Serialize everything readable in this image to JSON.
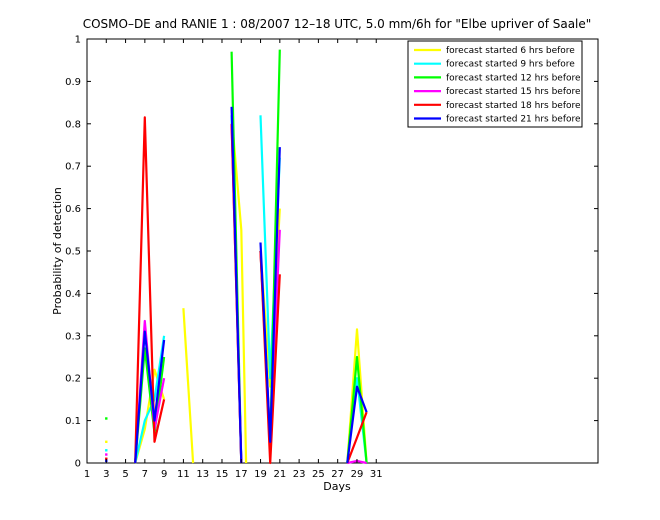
{
  "chart_data": {
    "type": "line",
    "title": "COSMO–DE and RANIE 1 : 08/2007 12–18 UTC, 5.0 mm/6h for \"Elbe upriver of Saale\"",
    "xlabel": "Days",
    "ylabel": "Probability of detection",
    "xlim": [
      1,
      54
    ],
    "ylim": [
      0,
      1
    ],
    "xticks": [
      1,
      3,
      5,
      7,
      9,
      11,
      13,
      15,
      17,
      19,
      21,
      23,
      25,
      27,
      29,
      31
    ],
    "yticks": [
      0,
      0.1,
      0.2,
      0.3,
      0.4,
      0.5,
      0.6,
      0.7,
      0.8,
      0.9,
      1
    ],
    "ytick_labels": [
      "0",
      "0.1",
      "0.2",
      "0.3",
      "0.4",
      "0.5",
      "0.6",
      "0.7",
      "0.8",
      "0.9",
      "1"
    ],
    "grid": false,
    "legend_position": "top-right",
    "series": [
      {
        "name": "forecast started 6 hrs before",
        "color": "#ffff00",
        "segments": [
          [
            [
              3,
              0.05
            ]
          ],
          [
            [
              6,
              0
            ],
            [
              7,
              0.08
            ],
            [
              8,
              0.22
            ],
            [
              9,
              0.15
            ]
          ],
          [
            [
              11,
              0.365
            ],
            [
              12,
              0
            ]
          ],
          [
            [
              16,
              0.82
            ],
            [
              17,
              0.55
            ],
            [
              17.5,
              0
            ]
          ],
          [
            [
              19,
              0.5
            ],
            [
              20,
              0.18
            ],
            [
              21,
              0.6
            ]
          ],
          [
            [
              28,
              0
            ],
            [
              29,
              0.315
            ],
            [
              30,
              0
            ]
          ]
        ]
      },
      {
        "name": "forecast started 9 hrs before",
        "color": "#00ffff",
        "segments": [
          [
            [
              3,
              0.03
            ]
          ],
          [
            [
              6,
              0
            ],
            [
              7,
              0.1
            ],
            [
              8,
              0.15
            ],
            [
              9,
              0.3
            ]
          ],
          [
            [
              16,
              0.82
            ],
            [
              17,
              0
            ]
          ],
          [
            [
              19,
              0.82
            ],
            [
              20,
              0.2
            ],
            [
              21,
              0.72
            ]
          ],
          [
            [
              28,
              0
            ],
            [
              29,
              0.2
            ],
            [
              30,
              0
            ]
          ]
        ]
      },
      {
        "name": "forecast started 12 hrs before",
        "color": "#00ff00",
        "segments": [
          [
            [
              3,
              0.105
            ]
          ],
          [
            [
              6,
              0
            ],
            [
              7,
              0.27
            ],
            [
              8,
              0.07
            ],
            [
              9,
              0.25
            ]
          ],
          [
            [
              16,
              0.97
            ],
            [
              17,
              0
            ]
          ],
          [
            [
              19,
              0.5
            ],
            [
              20,
              0.05
            ],
            [
              21,
              0.975
            ]
          ],
          [
            [
              28,
              0
            ],
            [
              29,
              0.25
            ],
            [
              30,
              0
            ]
          ]
        ]
      },
      {
        "name": "forecast started 15 hrs before",
        "color": "#ff00ff",
        "segments": [
          [
            [
              3,
              0.02
            ]
          ],
          [
            [
              6,
              0
            ],
            [
              7,
              0.335
            ],
            [
              8,
              0.08
            ],
            [
              9,
              0.2
            ]
          ],
          [
            [
              16,
              0.8
            ],
            [
              17,
              0
            ]
          ],
          [
            [
              19,
              0.5
            ],
            [
              20,
              0.05
            ],
            [
              21,
              0.55
            ]
          ],
          [
            [
              28,
              0
            ],
            [
              29,
              0.005
            ],
            [
              30,
              0
            ]
          ]
        ]
      },
      {
        "name": "forecast started 18 hrs before",
        "color": "#ff0000",
        "segments": [
          [
            [
              3,
              0.01
            ]
          ],
          [
            [
              6,
              0
            ],
            [
              7,
              0.815
            ],
            [
              8,
              0.05
            ],
            [
              9,
              0.15
            ]
          ],
          [
            [
              16,
              0.8
            ],
            [
              17,
              0
            ]
          ],
          [
            [
              19,
              0.5
            ],
            [
              20,
              0
            ],
            [
              21,
              0.445
            ]
          ],
          [
            [
              28,
              0
            ],
            [
              29,
              0.06
            ],
            [
              30,
              0.12
            ]
          ]
        ]
      },
      {
        "name": "forecast started 21 hrs before",
        "color": "#0000ff",
        "segments": [
          [
            [
              3,
              0.005
            ]
          ],
          [
            [
              6,
              0
            ],
            [
              7,
              0.31
            ],
            [
              8,
              0.1
            ],
            [
              9,
              0.29
            ]
          ],
          [
            [
              16,
              0.84
            ],
            [
              17,
              0
            ]
          ],
          [
            [
              19,
              0.52
            ],
            [
              20,
              0.05
            ],
            [
              21,
              0.745
            ]
          ],
          [
            [
              28,
              0
            ],
            [
              29,
              0.18
            ],
            [
              30,
              0.12
            ]
          ]
        ]
      }
    ]
  }
}
